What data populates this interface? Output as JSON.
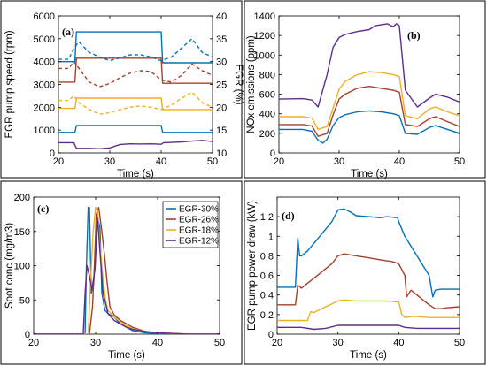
{
  "figure": {
    "colors": [
      "#0072BD",
      "#A2422A",
      "#EDB120",
      "#5E2D8C"
    ]
  },
  "chart_data": [
    {
      "panel": "(a)",
      "type": "line",
      "xlabel": "Time (s)",
      "ylabel": "EGR pump speed (rpm)",
      "y2label": "EGR (%)",
      "xlim": [
        20,
        50
      ],
      "ylim": [
        0,
        6000
      ],
      "y2lim": [
        10,
        40
      ],
      "xticks": [
        20,
        30,
        40,
        50
      ],
      "yticks": [
        0,
        1000,
        2000,
        3000,
        4000,
        5000,
        6000
      ],
      "y2ticks": [
        10,
        15,
        20,
        25,
        30,
        35,
        40
      ],
      "grid": false,
      "series": [
        {
          "axis": "left",
          "style": "solid",
          "color": "#0072BD",
          "x": [
            20,
            23.2,
            23.5,
            40,
            40.3,
            50
          ],
          "y": [
            4000,
            4000,
            5300,
            5300,
            3950,
            3950
          ]
        },
        {
          "axis": "left",
          "style": "solid",
          "color": "#A2422A",
          "x": [
            20,
            23.2,
            23.5,
            40,
            40.3,
            50
          ],
          "y": [
            3100,
            3100,
            4150,
            4150,
            3050,
            3050
          ]
        },
        {
          "axis": "left",
          "style": "solid",
          "color": "#EDB120",
          "x": [
            20,
            23.2,
            23.5,
            40,
            40.3,
            50
          ],
          "y": [
            1950,
            1950,
            2400,
            2400,
            1900,
            1900
          ]
        },
        {
          "axis": "left",
          "style": "solid",
          "color": "#0072BD",
          "x": [
            20,
            23.2,
            23.5,
            40,
            40.3,
            50
          ],
          "y": [
            900,
            900,
            1200,
            1200,
            900,
            900
          ]
        },
        {
          "axis": "left",
          "style": "solid",
          "color": "#5E2D8C",
          "x": [
            20,
            23,
            23.5,
            26,
            28,
            30,
            32,
            34,
            36,
            38,
            40,
            40.5,
            42,
            44,
            46,
            48,
            50
          ],
          "y": [
            450,
            450,
            200,
            200,
            180,
            220,
            370,
            400,
            390,
            400,
            380,
            450,
            460,
            480,
            520,
            550,
            500
          ]
        },
        {
          "axis": "right",
          "style": "dashed",
          "color": "#0072BD",
          "x": [
            20,
            22,
            23,
            24,
            26,
            28,
            30,
            32,
            34,
            36,
            38,
            40,
            42,
            44,
            46,
            48,
            50
          ],
          "y": [
            30.5,
            30.5,
            33,
            34.3,
            32,
            31,
            30.2,
            30.8,
            31.5,
            31.5,
            31,
            30.2,
            31,
            33,
            35,
            32,
            31
          ]
        },
        {
          "axis": "right",
          "style": "dashed",
          "color": "#A2422A",
          "x": [
            20,
            22,
            23,
            24,
            26,
            28,
            30,
            32,
            34,
            36,
            38,
            40,
            42,
            44,
            46,
            48,
            50
          ],
          "y": [
            28.5,
            28.5,
            30,
            28.5,
            25.5,
            24.5,
            25.2,
            26.5,
            27.5,
            28,
            27.8,
            26,
            25.5,
            27,
            29.5,
            28,
            27
          ]
        },
        {
          "axis": "right",
          "style": "dashed",
          "color": "#EDB120",
          "x": [
            20,
            22,
            23,
            24,
            26,
            28,
            30,
            32,
            34,
            36,
            38,
            40,
            42,
            44,
            46,
            48,
            50
          ],
          "y": [
            21.5,
            21.5,
            22.5,
            21,
            19.5,
            18.5,
            18.8,
            19.5,
            20,
            20.3,
            20,
            19.5,
            20.5,
            22,
            23.3,
            21,
            20
          ]
        }
      ]
    },
    {
      "panel": "(b)",
      "type": "line",
      "xlabel": "Time (s)",
      "ylabel": "NOx emissions (ppm)",
      "xlim": [
        20,
        50
      ],
      "ylim": [
        0,
        1400
      ],
      "xticks": [
        20,
        30,
        40,
        50
      ],
      "yticks": [
        0,
        200,
        400,
        600,
        800,
        1000,
        1200,
        1400
      ],
      "grid": false,
      "series": [
        {
          "name": "EGR-12%",
          "color": "#5E2D8C",
          "x": [
            20,
            24,
            25.5,
            26.5,
            28,
            29,
            30,
            31,
            33,
            35,
            36,
            38,
            39,
            39.5,
            40,
            41,
            43,
            45,
            46,
            48,
            50
          ],
          "y": [
            550,
            555,
            540,
            470,
            800,
            1080,
            1180,
            1210,
            1240,
            1260,
            1300,
            1320,
            1290,
            1320,
            1300,
            640,
            470,
            560,
            600,
            570,
            520
          ]
        },
        {
          "name": "EGR-18%",
          "color": "#EDB120",
          "x": [
            20,
            24,
            25.5,
            26.5,
            28,
            29,
            30,
            31,
            33,
            35,
            37,
            39,
            40,
            41,
            43,
            45,
            46,
            48,
            50
          ],
          "y": [
            370,
            370,
            355,
            240,
            270,
            460,
            650,
            730,
            800,
            830,
            820,
            800,
            780,
            380,
            350,
            450,
            470,
            420,
            380
          ]
        },
        {
          "name": "EGR-26%",
          "color": "#A2422A",
          "x": [
            20,
            24,
            25.5,
            26.5,
            28,
            29,
            30,
            31,
            33,
            35,
            37,
            39,
            40,
            41,
            43,
            45,
            46,
            48,
            50
          ],
          "y": [
            290,
            290,
            275,
            170,
            200,
            390,
            550,
            600,
            660,
            680,
            660,
            640,
            620,
            290,
            270,
            350,
            370,
            320,
            270
          ]
        },
        {
          "name": "EGR-30%",
          "color": "#0072BD",
          "x": [
            20,
            24,
            25.5,
            26.5,
            27.3,
            28,
            29,
            30,
            31,
            33,
            35,
            37,
            39,
            40,
            41,
            43,
            45,
            46,
            48,
            50
          ],
          "y": [
            240,
            240,
            220,
            130,
            100,
            140,
            280,
            360,
            390,
            420,
            430,
            420,
            400,
            380,
            200,
            190,
            260,
            280,
            240,
            200
          ]
        }
      ]
    },
    {
      "panel": "(c)",
      "type": "line",
      "xlabel": "Time (s)",
      "ylabel": "Soot conc (mg/m3)",
      "xlim": [
        20,
        50
      ],
      "ylim": [
        0,
        200
      ],
      "xticks": [
        20,
        30,
        40,
        50
      ],
      "yticks": [
        0,
        50,
        100,
        150,
        200
      ],
      "grid": false,
      "legend": [
        "EGR-30%",
        "EGR-26%",
        "EGR-18%",
        "EGR-12%"
      ],
      "legend_position": "top-right",
      "series": [
        {
          "name": "EGR-30%",
          "color": "#0072BD",
          "x": [
            20,
            28.3,
            28.5,
            28.8,
            29,
            29.3,
            29.7,
            30.2,
            30.7,
            31,
            31.5,
            32,
            33,
            34,
            35,
            36,
            38,
            40,
            45,
            50
          ],
          "y": [
            0,
            0,
            95,
            185,
            185,
            60,
            75,
            175,
            155,
            60,
            35,
            30,
            25,
            15,
            10,
            5,
            2,
            1,
            0,
            0
          ]
        },
        {
          "name": "EGR-26%",
          "color": "#A2422A",
          "x": [
            20,
            29,
            29.5,
            29.8,
            30.1,
            30.5,
            31,
            31.5,
            31.8,
            32.3,
            33,
            34,
            35,
            36,
            37,
            38,
            40,
            45,
            50
          ],
          "y": [
            0,
            0,
            40,
            100,
            175,
            185,
            150,
            110,
            80,
            40,
            28,
            20,
            15,
            10,
            7,
            4,
            2,
            0,
            0
          ]
        },
        {
          "name": "EGR-18%",
          "color": "#EDB120",
          "x": [
            20,
            28.8,
            29.2,
            29.6,
            30,
            30.3,
            30.7,
            31.2,
            31.6,
            32,
            33,
            34,
            35,
            36,
            38,
            40,
            45,
            50
          ],
          "y": [
            0,
            0,
            80,
            150,
            185,
            180,
            130,
            80,
            50,
            35,
            25,
            18,
            12,
            8,
            4,
            2,
            0,
            0
          ]
        },
        {
          "name": "EGR-12%",
          "color": "#5E2D8C",
          "x": [
            20,
            28,
            28.3,
            28.6,
            29,
            29.4,
            29.9,
            30.3,
            30.7,
            31.2,
            32,
            33,
            34,
            35,
            36,
            38,
            40,
            45,
            50
          ],
          "y": [
            0,
            0,
            60,
            100,
            85,
            65,
            95,
            170,
            120,
            60,
            30,
            20,
            15,
            10,
            7,
            4,
            2,
            0,
            0
          ]
        }
      ]
    },
    {
      "panel": "(d)",
      "type": "line",
      "xlabel": "Time (s)",
      "ylabel": "EGR pump power draw (kW)",
      "xlim": [
        20,
        50
      ],
      "ylim": [
        0,
        1.4
      ],
      "xticks": [
        20,
        30,
        40,
        50
      ],
      "yticks": [
        0,
        0.2,
        0.4,
        0.6,
        0.8,
        1,
        1.2
      ],
      "grid": false,
      "series": [
        {
          "name": "EGR-30%",
          "color": "#0072BD",
          "x": [
            20,
            23,
            23.4,
            23.7,
            24,
            25,
            27,
            29,
            30,
            31,
            32,
            33,
            35,
            37,
            38,
            39.8,
            40,
            41,
            42,
            43,
            44,
            45,
            45.6,
            46,
            47,
            50
          ],
          "y": [
            0.48,
            0.48,
            0.98,
            0.8,
            0.8,
            0.85,
            1.0,
            1.15,
            1.27,
            1.28,
            1.25,
            1.21,
            1.2,
            1.19,
            1.2,
            1.19,
            1.15,
            1.0,
            0.9,
            0.8,
            0.7,
            0.6,
            0.38,
            0.45,
            0.46,
            0.46
          ]
        },
        {
          "name": "EGR-26%",
          "color": "#A2422A",
          "x": [
            20,
            23,
            23.4,
            24,
            25,
            27,
            29,
            30,
            31,
            33,
            35,
            37,
            39,
            40,
            41,
            41.3,
            42,
            43,
            44,
            45,
            46,
            47,
            48,
            50
          ],
          "y": [
            0.3,
            0.3,
            0.5,
            0.47,
            0.52,
            0.62,
            0.72,
            0.8,
            0.82,
            0.8,
            0.78,
            0.76,
            0.74,
            0.72,
            0.6,
            0.38,
            0.45,
            0.4,
            0.35,
            0.3,
            0.26,
            0.26,
            0.27,
            0.28
          ]
        },
        {
          "name": "EGR-18%",
          "color": "#EDB120",
          "x": [
            20,
            25,
            25.5,
            26,
            27,
            28,
            29,
            30,
            31,
            33,
            35,
            38,
            40,
            40.5,
            41,
            42,
            43,
            45,
            50
          ],
          "y": [
            0.14,
            0.14,
            0.23,
            0.22,
            0.25,
            0.28,
            0.31,
            0.34,
            0.35,
            0.34,
            0.34,
            0.34,
            0.33,
            0.2,
            0.17,
            0.18,
            0.18,
            0.17,
            0.17
          ]
        },
        {
          "name": "EGR-12%",
          "color": "#5E2D8C",
          "x": [
            20,
            24,
            26,
            28,
            30,
            32,
            34,
            36,
            38,
            40,
            41,
            43,
            45,
            50
          ],
          "y": [
            0.07,
            0.07,
            0.05,
            0.06,
            0.09,
            0.09,
            0.09,
            0.09,
            0.09,
            0.09,
            0.07,
            0.06,
            0.06,
            0.06
          ]
        }
      ]
    }
  ]
}
